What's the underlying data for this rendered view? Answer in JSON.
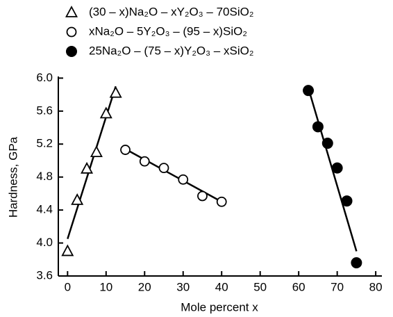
{
  "chart_data": {
    "type": "scatter",
    "xlabel": "Mole percent x",
    "ylabel": "Hardness, GPa",
    "xlim": [
      -2.4,
      81.6
    ],
    "ylim": [
      3.6,
      6.02
    ],
    "xticks": [
      0,
      10,
      20,
      30,
      40,
      50,
      60,
      70,
      80
    ],
    "yticks": [
      3.6,
      {
        "value": 4.0,
        "label": "4.0"
      },
      4.4,
      4.8,
      5.2,
      5.6,
      {
        "value": 6.0,
        "label": "6.0"
      }
    ],
    "legend": "top",
    "series": [
      {
        "name": "(30 – x)Na₂O – xY₂O₃ – 70SiO₂",
        "color": "#000000",
        "marker": "triangle-open",
        "x": [
          0,
          2.5,
          5,
          7.5,
          10,
          12.5
        ],
        "values": [
          3.9,
          4.52,
          4.9,
          5.1,
          5.57,
          5.82
        ],
        "fit_x": [
          0,
          12.5
        ],
        "fit_y": [
          4.05,
          5.9
        ]
      },
      {
        "name": "xNa₂O – 5Y₂O₃ – (95 – x)SiO₂",
        "color": "#000000",
        "marker": "circle-open",
        "x": [
          15,
          20,
          25,
          30,
          35,
          40
        ],
        "values": [
          5.13,
          4.99,
          4.91,
          4.77,
          4.57,
          4.5
        ],
        "fit_x": [
          15,
          40
        ],
        "fit_y": [
          5.14,
          4.5
        ]
      },
      {
        "name": "25Na₂O – (75 – x)Y₂O₃ – xSiO₂",
        "color": "#000000",
        "marker": "circle-filled",
        "x": [
          62.5,
          65,
          67.5,
          70,
          72.5,
          75
        ],
        "values": [
          5.85,
          5.41,
          5.21,
          4.91,
          4.51,
          3.76
        ],
        "fit_x": [
          62.5,
          75
        ],
        "fit_y": [
          5.88,
          3.9
        ]
      }
    ]
  }
}
